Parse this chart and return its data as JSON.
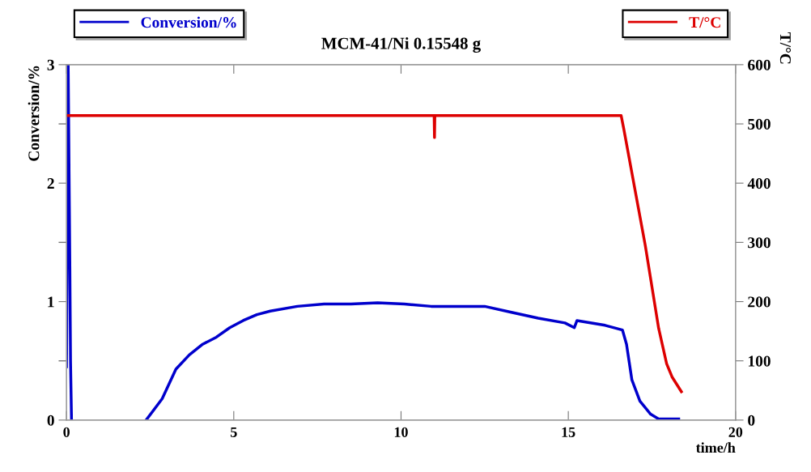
{
  "chart_data": {
    "type": "line",
    "title": "MCM-41/Ni 0.15548 g",
    "xlabel": "time/h",
    "ylabel": "Conversion/%",
    "y2label": "T/°C",
    "xlim": [
      0,
      20
    ],
    "xticks": [
      0,
      5,
      10,
      15,
      20
    ],
    "ylim": [
      0,
      3
    ],
    "yticks": [
      0,
      {
        "value": 0.5,
        "label": null
      },
      1,
      {
        "value": 1.5,
        "label": null
      },
      2,
      {
        "value": 2.5,
        "label": null
      },
      3
    ],
    "y2lim": [
      0,
      600
    ],
    "y2ticks": [
      0,
      100,
      200,
      300,
      400,
      500,
      600
    ],
    "legend": "top",
    "grid": false,
    "marker": "none",
    "line_style": "solid",
    "series": [
      {
        "name": "Conversion/%",
        "color": "#0000cc",
        "x": [
          0.0,
          0.05,
          0.1,
          0.12,
          0.15,
          1.0,
          2.38,
          2.86,
          3.27,
          3.67,
          4.07,
          4.48,
          4.88,
          5.28,
          5.69,
          6.09,
          6.9,
          7.7,
          8.5,
          9.3,
          10.1,
          10.9,
          12.5,
          13.3,
          14.1,
          14.9,
          15.18,
          15.26,
          16.1,
          16.62,
          16.74,
          16.9,
          17.14,
          17.46,
          17.7,
          18.1,
          18.3
        ],
        "values": [
          0.45,
          3,
          1.3,
          0.5,
          0,
          null,
          0,
          0.18,
          0.43,
          0.55,
          0.64,
          0.7,
          0.78,
          0.84,
          0.89,
          0.92,
          0.96,
          0.98,
          0.98,
          0.99,
          0.98,
          0.96,
          0.96,
          0.91,
          0.86,
          0.82,
          0.78,
          0.84,
          0.8,
          0.76,
          0.64,
          0.34,
          0.16,
          0.05,
          0.01,
          0.01,
          0.01
        ]
      },
      {
        "name": "T/°C",
        "color": "#dd0000",
        "axis": "y2",
        "x": [
          0.0,
          5.0,
          10.99,
          11.0,
          11.01,
          16.58,
          16.66,
          17.3,
          17.7,
          17.94,
          18.1,
          18.38
        ],
        "values": [
          514,
          514,
          514,
          477,
          514,
          514,
          491,
          295,
          155,
          95,
          73,
          48
        ]
      }
    ]
  }
}
